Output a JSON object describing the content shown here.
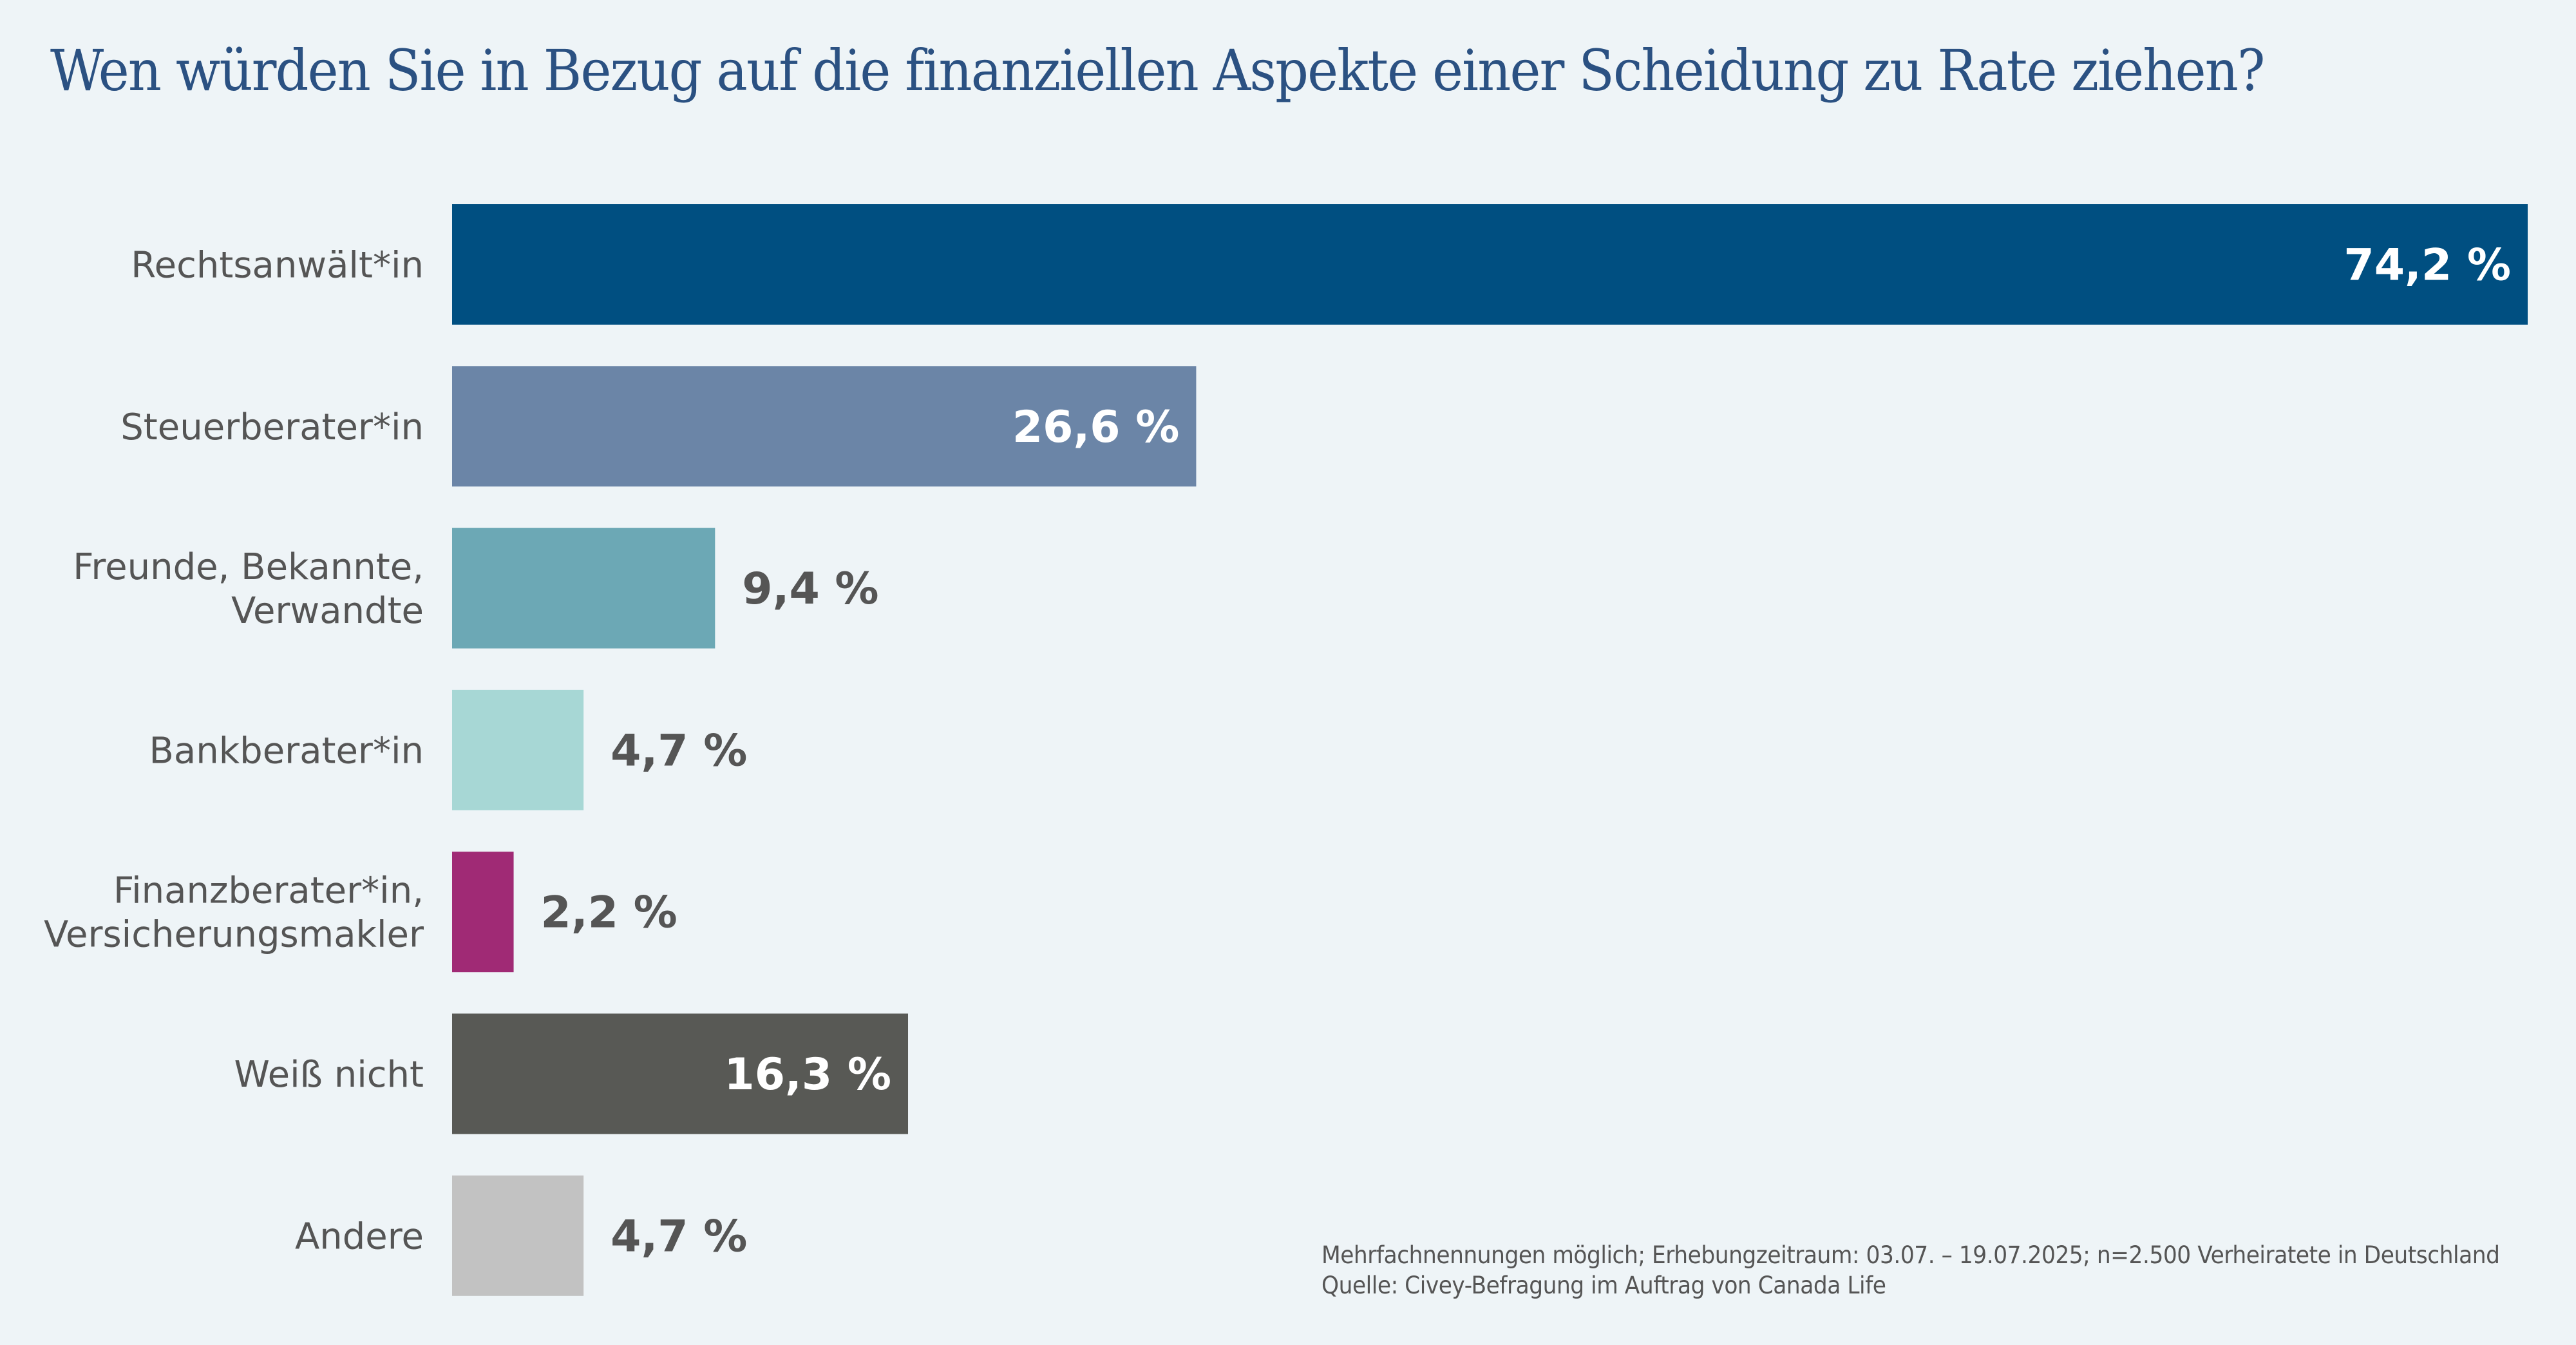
{
  "chart_data": {
    "type": "bar",
    "orientation": "horizontal",
    "title": "Wen würden Sie in Bezug auf die finanziellen Aspekte einer Scheidung zu Rate ziehen?",
    "xlabel": "",
    "ylabel": "",
    "unit": "%",
    "grid": false,
    "xlim": [
      0,
      74.2
    ],
    "categories": [
      [
        "Rechtsanwält*in"
      ],
      [
        "Steuerberater*in"
      ],
      [
        "Freunde, Bekannte,",
        "Verwandte"
      ],
      [
        "Bankberater*in"
      ],
      [
        "Finanzberater*in,",
        "Versicherungsmakler"
      ],
      [
        "Weiß nicht"
      ],
      [
        "Andere"
      ]
    ],
    "values": [
      74.2,
      26.6,
      9.4,
      4.7,
      2.2,
      16.3,
      4.7
    ],
    "value_labels": [
      "74,2 %",
      "26,6 %",
      "9,4 %",
      "4,7 %",
      "2,2 %",
      "16,3 %",
      "4,7 %"
    ],
    "label_inside": [
      true,
      true,
      false,
      false,
      false,
      true,
      false
    ],
    "colors": [
      "#004f81",
      "#6b85a7",
      "#6ca8b5",
      "#a7d7d5",
      "#a02a75",
      "#585955",
      "#c2c2c2"
    ],
    "footnotes": [
      "Mehrfachnennungen möglich; Erhebungzeitraum: 03.07. – 19.07.2025; n=2.500 Verheiratete in Deutschland",
      "Quelle: Civey-Befragung im Auftrag von Canada Life"
    ]
  },
  "colors": {
    "background": "#eef4f7",
    "title": "#2b5182",
    "text": "#555555",
    "label_inside": "#ffffff",
    "label_outside": "#555555"
  }
}
